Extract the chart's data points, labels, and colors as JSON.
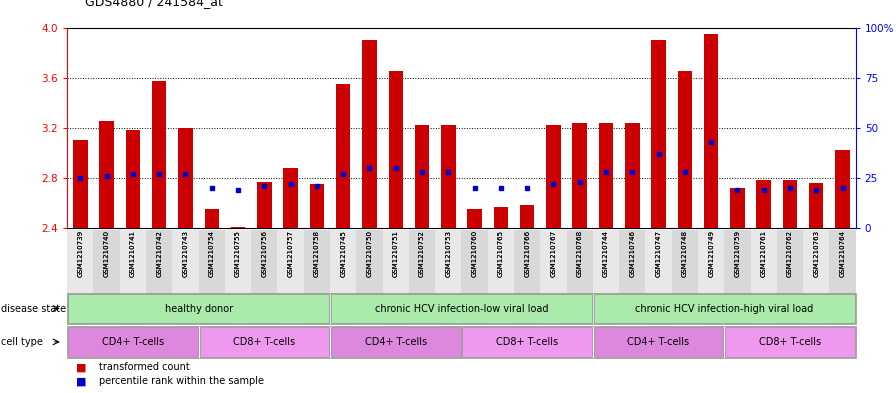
{
  "title": "GDS4880 / 241584_at",
  "samples": [
    "GSM1210739",
    "GSM1210740",
    "GSM1210741",
    "GSM1210742",
    "GSM1210743",
    "GSM1210754",
    "GSM1210755",
    "GSM1210756",
    "GSM1210757",
    "GSM1210758",
    "GSM1210745",
    "GSM1210750",
    "GSM1210751",
    "GSM1210752",
    "GSM1210753",
    "GSM1210760",
    "GSM1210765",
    "GSM1210766",
    "GSM1210767",
    "GSM1210768",
    "GSM1210744",
    "GSM1210746",
    "GSM1210747",
    "GSM1210748",
    "GSM1210749",
    "GSM1210759",
    "GSM1210761",
    "GSM1210762",
    "GSM1210763",
    "GSM1210764"
  ],
  "bar_values": [
    3.1,
    3.25,
    3.18,
    3.57,
    3.2,
    2.55,
    2.41,
    2.77,
    2.88,
    2.75,
    3.55,
    3.9,
    3.65,
    3.22,
    3.22,
    2.55,
    2.57,
    2.58,
    3.22,
    3.24,
    3.24,
    3.24,
    3.9,
    3.65,
    3.95,
    2.72,
    2.78,
    2.78,
    2.76,
    3.02
  ],
  "percentile_values": [
    25,
    26,
    27,
    27,
    27,
    20,
    19,
    21,
    22,
    21,
    27,
    30,
    30,
    28,
    28,
    20,
    20,
    20,
    22,
    23,
    28,
    28,
    37,
    28,
    43,
    19,
    19,
    20,
    19,
    20
  ],
  "ylim_left": [
    2.4,
    4.0
  ],
  "ylim_right": [
    0,
    100
  ],
  "yticks_left": [
    2.4,
    2.8,
    3.2,
    3.6,
    4.0
  ],
  "yticks_right": [
    0,
    25,
    50,
    75,
    100
  ],
  "ytick_labels_right": [
    "0",
    "25",
    "50",
    "75",
    "100%"
  ],
  "bar_color": "#cc0000",
  "dot_color": "#0000cc",
  "bg_color": "#ffffff",
  "disease_state_label": "disease state",
  "cell_type_label": "cell type",
  "legend_bar_label": "transformed count",
  "legend_dot_label": "percentile rank within the sample",
  "disease_groups": [
    {
      "label": "healthy donor",
      "start": 0,
      "end": 10,
      "color": "#aaeaaa"
    },
    {
      "label": "chronic HCV infection-low viral load",
      "start": 10,
      "end": 20,
      "color": "#aaeaaa"
    },
    {
      "label": "chronic HCV infection-high viral load",
      "start": 20,
      "end": 30,
      "color": "#aaeaaa"
    }
  ],
  "cell_type_groups": [
    {
      "label": "CD4+ T-cells",
      "start": 0,
      "end": 5,
      "color": "#dd88dd"
    },
    {
      "label": "CD8+ T-cells",
      "start": 5,
      "end": 10,
      "color": "#ee99ee"
    },
    {
      "label": "CD4+ T-cells",
      "start": 10,
      "end": 15,
      "color": "#dd88dd"
    },
    {
      "label": "CD8+ T-cells",
      "start": 15,
      "end": 20,
      "color": "#ee99ee"
    },
    {
      "label": "CD4+ T-cells",
      "start": 20,
      "end": 25,
      "color": "#dd88dd"
    },
    {
      "label": "CD8+ T-cells",
      "start": 25,
      "end": 30,
      "color": "#ee99ee"
    }
  ]
}
